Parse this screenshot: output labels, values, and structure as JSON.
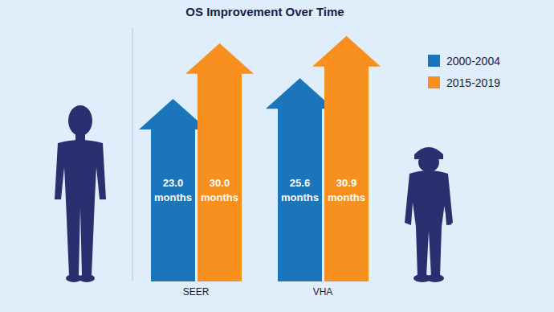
{
  "chart_data": {
    "type": "bar",
    "title": "OS Improvement Over Time",
    "categories": [
      "SEER",
      "VHA"
    ],
    "series": [
      {
        "name": "2000-2004",
        "color": "#1b75bb",
        "values": [
          23.0,
          25.6
        ],
        "value_labels": [
          "23.0 months",
          "25.6 months"
        ]
      },
      {
        "name": "2015-2019",
        "color": "#f7901e",
        "values": [
          30.0,
          30.9
        ],
        "value_labels": [
          "30.0 months",
          "30.9 months"
        ]
      }
    ],
    "ylim": [
      0,
      32
    ],
    "legend": "upper right",
    "data_labels": true,
    "tick_labels": "x",
    "marker": "arrow"
  }
}
